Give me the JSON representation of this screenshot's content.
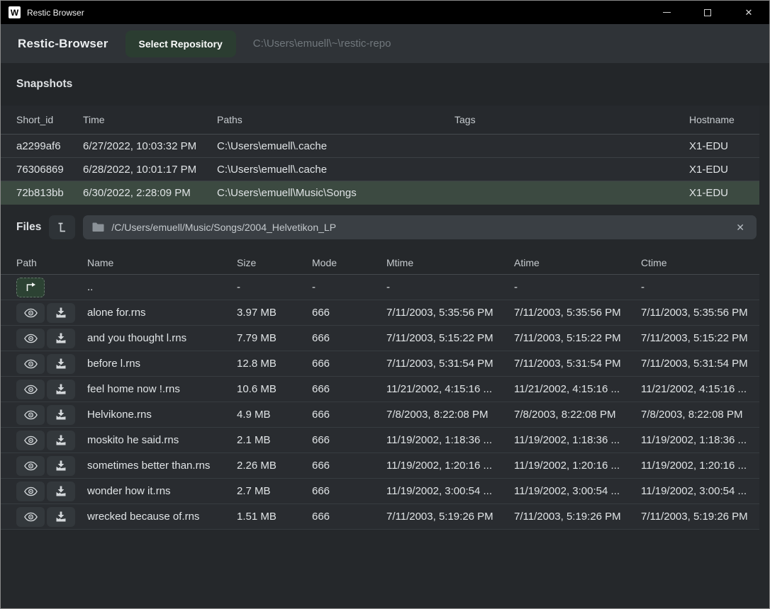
{
  "window": {
    "title": "Restic Browser",
    "app_logo_letter": "W"
  },
  "icons": {
    "clear": "✕",
    "close": "✕"
  },
  "header": {
    "app_title": "Restic-Browser",
    "select_repo_button": "Select Repository",
    "repo_path": "C:\\Users\\emuell\\~\\restic-repo"
  },
  "colors": {
    "titlebar": "#000000",
    "header_bar": "#2f3337",
    "accent_button_green": "#2b3d31",
    "selected_row_green": "#3c4a41",
    "parent_button_green": "#2c4233",
    "row_background": "#292c30",
    "path_bar_background": "#3a3f44"
  },
  "snapshots": {
    "heading": "Snapshots",
    "columns": [
      "Short_id",
      "Time",
      "Paths",
      "Tags",
      "Hostname"
    ],
    "rows": [
      {
        "short_id": "a2299af6",
        "time": "6/27/2022, 10:03:32 PM",
        "paths": "C:\\Users\\emuell\\.cache",
        "tags": "",
        "hostname": "X1-EDU",
        "selected": false
      },
      {
        "short_id": "76306869",
        "time": "6/28/2022, 10:01:17 PM",
        "paths": "C:\\Users\\emuell\\.cache",
        "tags": "",
        "hostname": "X1-EDU",
        "selected": false
      },
      {
        "short_id": "72b813bb",
        "time": "6/30/2022, 2:28:09 PM",
        "paths": "C:\\Users\\emuell\\Music\\Songs",
        "tags": "",
        "hostname": "X1-EDU",
        "selected": true
      }
    ]
  },
  "files": {
    "heading": "Files",
    "path_value": "/C/Users/emuell/Music/Songs/2004_Helvetikon_LP",
    "columns": [
      "Path",
      "Name",
      "Size",
      "Mode",
      "Mtime",
      "Atime",
      "Ctime"
    ],
    "parent_row": {
      "name": "..",
      "size": "-",
      "mode": "-",
      "mtime": "-",
      "atime": "-",
      "ctime": "-"
    },
    "rows": [
      {
        "name": "alone for.rns",
        "size": "3.97 MB",
        "mode": "666",
        "mtime": "7/11/2003, 5:35:56 PM",
        "atime": "7/11/2003, 5:35:56 PM",
        "ctime": "7/11/2003, 5:35:56 PM"
      },
      {
        "name": "and you thought l.rns",
        "size": "7.79 MB",
        "mode": "666",
        "mtime": "7/11/2003, 5:15:22 PM",
        "atime": "7/11/2003, 5:15:22 PM",
        "ctime": "7/11/2003, 5:15:22 PM"
      },
      {
        "name": "before l.rns",
        "size": "12.8 MB",
        "mode": "666",
        "mtime": "7/11/2003, 5:31:54 PM",
        "atime": "7/11/2003, 5:31:54 PM",
        "ctime": "7/11/2003, 5:31:54 PM"
      },
      {
        "name": "feel home now !.rns",
        "size": "10.6 MB",
        "mode": "666",
        "mtime": "11/21/2002, 4:15:16 ...",
        "atime": "11/21/2002, 4:15:16 ...",
        "ctime": "11/21/2002, 4:15:16 ..."
      },
      {
        "name": "Helvikone.rns",
        "size": "4.9 MB",
        "mode": "666",
        "mtime": "7/8/2003, 8:22:08 PM",
        "atime": "7/8/2003, 8:22:08 PM",
        "ctime": "7/8/2003, 8:22:08 PM"
      },
      {
        "name": "moskito he said.rns",
        "size": "2.1 MB",
        "mode": "666",
        "mtime": "11/19/2002, 1:18:36 ...",
        "atime": "11/19/2002, 1:18:36 ...",
        "ctime": "11/19/2002, 1:18:36 ..."
      },
      {
        "name": "sometimes better than.rns",
        "size": "2.26 MB",
        "mode": "666",
        "mtime": "11/19/2002, 1:20:16 ...",
        "atime": "11/19/2002, 1:20:16 ...",
        "ctime": "11/19/2002, 1:20:16 ..."
      },
      {
        "name": "wonder how it.rns",
        "size": "2.7 MB",
        "mode": "666",
        "mtime": "11/19/2002, 3:00:54 ...",
        "atime": "11/19/2002, 3:00:54 ...",
        "ctime": "11/19/2002, 3:00:54 ..."
      },
      {
        "name": "wrecked because of.rns",
        "size": "1.51 MB",
        "mode": "666",
        "mtime": "7/11/2003, 5:19:26 PM",
        "atime": "7/11/2003, 5:19:26 PM",
        "ctime": "7/11/2003, 5:19:26 PM"
      }
    ]
  }
}
